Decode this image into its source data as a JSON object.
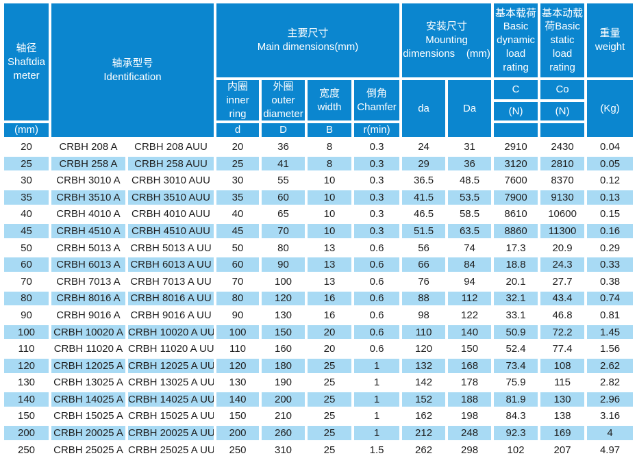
{
  "colors": {
    "header_bg": "#0b86cf",
    "row_bg": "#ffffff",
    "row_alt_bg": "#a8daf4",
    "header_text": "#ffffff",
    "body_text": "#1d1d1d"
  },
  "table": {
    "header": {
      "shaft_diameter": [
        "轴径",
        "Shaftdia",
        "meter"
      ],
      "shaft_diameter_unit": "(mm)",
      "identification": [
        "轴承型号",
        "Identification"
      ],
      "main_dimensions": [
        "主要尺寸",
        "Main dimensions(mm)"
      ],
      "inner_ring": [
        "内圈",
        "inner ring"
      ],
      "outer_diameter": [
        "外圈outer",
        "diameter"
      ],
      "width": [
        "宽度",
        "width"
      ],
      "chamfer": [
        "倒角",
        "Chamfer"
      ],
      "d_label": "d",
      "D_label": "D",
      "B_label": "B",
      "r_min_label": "r(min)",
      "mounting": [
        "安装尺寸",
        "Mounting",
        "dimensions    (mm)"
      ],
      "da_label": "da",
      "Da_label": "Da",
      "basic_dynamic": [
        "基本载荷",
        "Basic",
        "dynamic",
        "load",
        "rating"
      ],
      "basic_static": [
        "基本动载",
        "荷Basic",
        "static",
        "load",
        "rating"
      ],
      "C_label": "C",
      "Co_label": "Co",
      "C_unit": "(N)",
      "Co_unit": "(N)",
      "weight": [
        "重量",
        "weight"
      ],
      "weight_unit": "(Kg)"
    },
    "column_keys": [
      "shaft-dia",
      "model-a",
      "model-auu",
      "d",
      "D",
      "B",
      "r-min",
      "da",
      "Da",
      "C",
      "Co",
      "weight"
    ],
    "rows": [
      [
        "20",
        "CRBH 208 A",
        "CRBH 208 AUU",
        "20",
        "36",
        "8",
        "0.3",
        "24",
        "31",
        "2910",
        "2430",
        "0.04"
      ],
      [
        "25",
        "CRBH 258 A",
        "CRBH 258 AUU",
        "25",
        "41",
        "8",
        "0.3",
        "29",
        "36",
        "3120",
        "2810",
        "0.05"
      ],
      [
        "30",
        "CRBH 3010 A",
        "CRBH 3010 AUU",
        "30",
        "55",
        "10",
        "0.3",
        "36.5",
        "48.5",
        "7600",
        "8370",
        "0.12"
      ],
      [
        "35",
        "CRBH 3510 A",
        "CRBH 3510 AUU",
        "35",
        "60",
        "10",
        "0.3",
        "41.5",
        "53.5",
        "7900",
        "9130",
        "0.13"
      ],
      [
        "40",
        "CRBH 4010 A",
        "CRBH 4010 AUU",
        "40",
        "65",
        "10",
        "0.3",
        "46.5",
        "58.5",
        "8610",
        "10600",
        "0.15"
      ],
      [
        "45",
        "CRBH 4510 A",
        "CRBH 4510 AUU",
        "45",
        "70",
        "10",
        "0.3",
        "51.5",
        "63.5",
        "8860",
        "11300",
        "0.16"
      ],
      [
        "50",
        "CRBH 5013 A",
        "CRBH 5013 A UU",
        "50",
        "80",
        "13",
        "0.6",
        "56",
        "74",
        "17.3",
        "20.9",
        "0.29"
      ],
      [
        "60",
        "CRBH 6013 A",
        "CRBH 6013 A UU",
        "60",
        "90",
        "13",
        "0.6",
        "66",
        "84",
        "18.8",
        "24.3",
        "0.33"
      ],
      [
        "70",
        "CRBH 7013 A",
        "CRBH 7013 A UU",
        "70",
        "100",
        "13",
        "0.6",
        "76",
        "94",
        "20.1",
        "27.7",
        "0.38"
      ],
      [
        "80",
        "CRBH 8016 A",
        "CRBH 8016 A UU",
        "80",
        "120",
        "16",
        "0.6",
        "88",
        "112",
        "32.1",
        "43.4",
        "0.74"
      ],
      [
        "90",
        "CRBH 9016 A",
        "CRBH 9016 A UU",
        "90",
        "130",
        "16",
        "0.6",
        "98",
        "122",
        "33.1",
        "46.8",
        "0.81"
      ],
      [
        "100",
        "CRBH 10020 A",
        "CRBH 10020 A UU",
        "100",
        "150",
        "20",
        "0.6",
        "110",
        "140",
        "50.9",
        "72.2",
        "1.45"
      ],
      [
        "110",
        "CRBH 11020 A",
        "CRBH 11020 A UU",
        "110",
        "160",
        "20",
        "0.6",
        "120",
        "150",
        "52.4",
        "77.4",
        "1.56"
      ],
      [
        "120",
        "CRBH 12025 A",
        "CRBH 12025 A UU",
        "120",
        "180",
        "25",
        "1",
        "132",
        "168",
        "73.4",
        "108",
        "2.62"
      ],
      [
        "130",
        "CRBH 13025 A",
        "CRBH 13025 A UU",
        "130",
        "190",
        "25",
        "1",
        "142",
        "178",
        "75.9",
        "115",
        "2.82"
      ],
      [
        "140",
        "CRBH 14025 A",
        "CRBH 14025 A UU",
        "140",
        "200",
        "25",
        "1",
        "152",
        "188",
        "81.9",
        "130",
        "2.96"
      ],
      [
        "150",
        "CRBH 15025 A",
        "CRBH 15025 A UU",
        "150",
        "210",
        "25",
        "1",
        "162",
        "198",
        "84.3",
        "138",
        "3.16"
      ],
      [
        "200",
        "CRBH 20025 A",
        "CRBH 20025 A UU",
        "200",
        "260",
        "25",
        "1",
        "212",
        "248",
        "92.3",
        "169",
        "4"
      ],
      [
        "250",
        "CRBH 25025 A",
        "CRBH 25025 A UU",
        "250",
        "310",
        "25",
        "1.5",
        "262",
        "298",
        "102",
        "207",
        "4.97"
      ]
    ]
  }
}
